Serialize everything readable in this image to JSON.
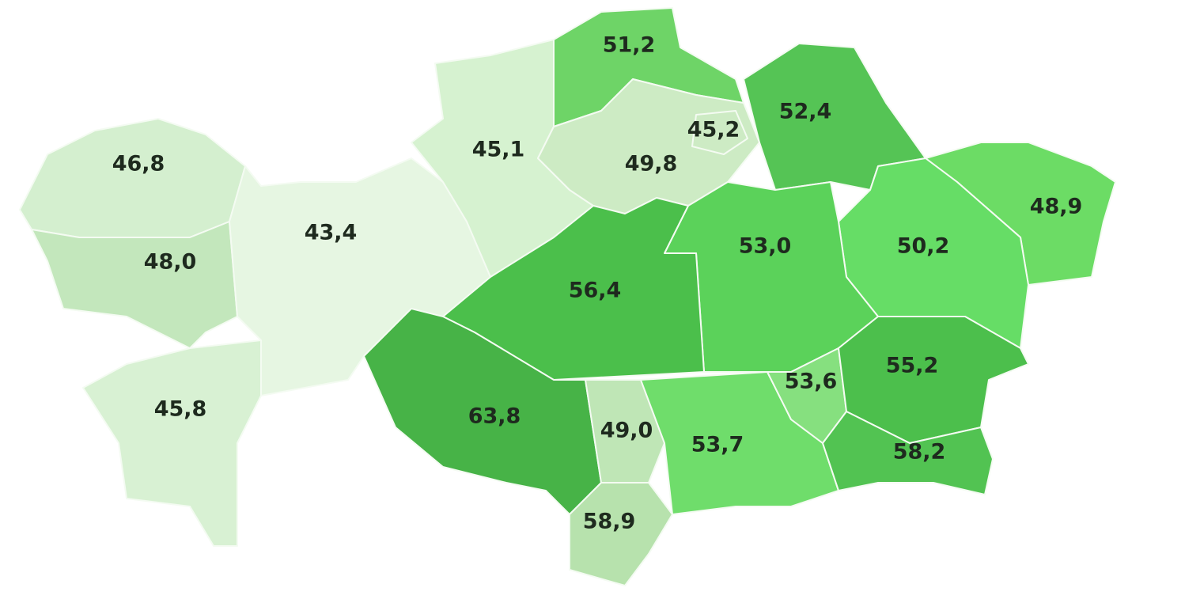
{
  "regions": [
    {
      "label": "46,8",
      "color": "#d4efcf"
    },
    {
      "label": "48,0",
      "color": "#c3e7bc"
    },
    {
      "label": "45,8",
      "color": "#d8f1d3"
    },
    {
      "label": "43,4",
      "color": "#e6f6e2"
    },
    {
      "label": "45,1",
      "color": "#d6f2d0"
    },
    {
      "label": "51,2",
      "color": "#6ed467"
    },
    {
      "label": "49,8",
      "color": "#cdebc4"
    },
    {
      "label": "45,2",
      "color": "#cdebc4"
    },
    {
      "label": "52,4",
      "color": "#55c455"
    },
    {
      "label": "48,9",
      "color": "#6cdc65"
    },
    {
      "label": "50,2",
      "color": "#66dd66"
    },
    {
      "label": "53,0",
      "color": "#5bd25a"
    },
    {
      "label": "56,4",
      "color": "#4bbf4b"
    },
    {
      "label": "63,8",
      "color": "#47b347"
    },
    {
      "label": "49,0",
      "color": "#bfe6b6"
    },
    {
      "label": "58,9",
      "color": "#b7e2ad"
    },
    {
      "label": "53,7",
      "color": "#6fdd6b"
    },
    {
      "label": "53,6",
      "color": "#86e07f"
    },
    {
      "label": "55,2",
      "color": "#4cbf4c"
    },
    {
      "label": "58,2",
      "color": "#52c352"
    }
  ]
}
